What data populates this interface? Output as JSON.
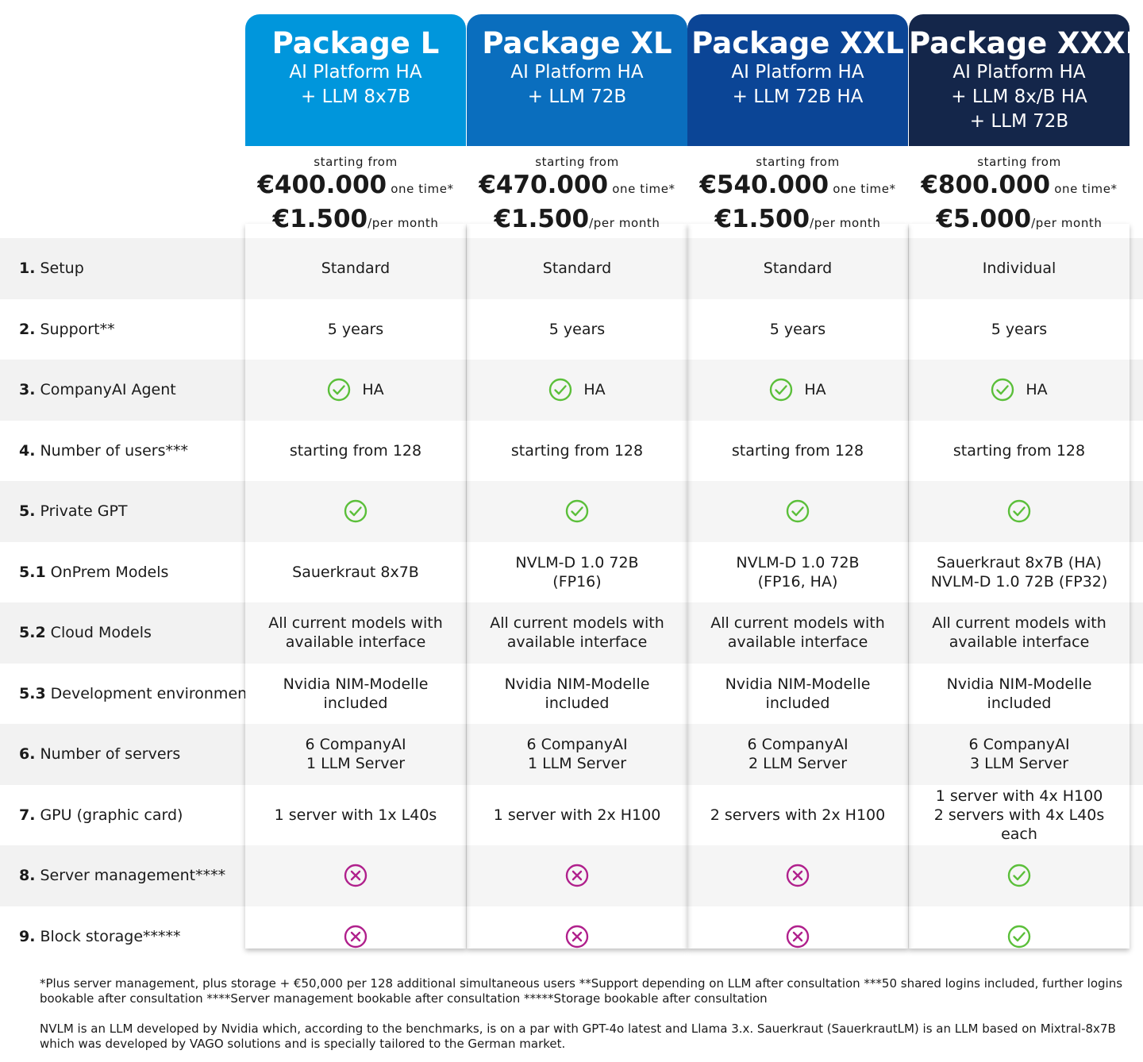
{
  "packages": [
    {
      "name": "Package L",
      "sub": [
        "AI Platform HA",
        "+ LLM 8x7B"
      ],
      "color": "#0096dc",
      "price": {
        "from": "starting from",
        "once": "€400.000",
        "once_suffix": "one time*",
        "monthly": "€1.500",
        "monthly_suffix": "/per month"
      }
    },
    {
      "name": "Package XL",
      "sub": [
        "AI Platform HA",
        "+ LLM 72B"
      ],
      "color": "#0a6ebe",
      "price": {
        "from": "starting from",
        "once": "€470.000",
        "once_suffix": "one time*",
        "monthly": "€1.500",
        "monthly_suffix": "/per month"
      }
    },
    {
      "name": "Package XXL",
      "sub": [
        "AI Platform HA",
        "+ LLM 72B HA"
      ],
      "color": "#0b4596",
      "price": {
        "from": "starting from",
        "once": "€540.000",
        "once_suffix": "one time*",
        "monthly": "€1.500",
        "monthly_suffix": "/per month"
      }
    },
    {
      "name": "Package XXXL",
      "sub": [
        "AI Platform HA",
        "+ LLM 8x/B HA",
        "+ LLM 72B"
      ],
      "color": "#14264a",
      "price": {
        "from": "starting from",
        "once": "€800.000",
        "once_suffix": "one time*",
        "monthly": "€5.000",
        "monthly_suffix": "/per month"
      }
    }
  ],
  "features": [
    {
      "num": "1.",
      "label": "Setup",
      "values": [
        [
          "Standard"
        ],
        [
          "Standard"
        ],
        [
          "Standard"
        ],
        [
          "Individual"
        ]
      ]
    },
    {
      "num": "2.",
      "label": "Support**",
      "values": [
        [
          "5 years"
        ],
        [
          "5 years"
        ],
        [
          "5 years"
        ],
        [
          "5 years"
        ]
      ]
    },
    {
      "num": "3.",
      "label": "CompanyAI Agent",
      "check_label": "HA"
    },
    {
      "num": "4.",
      "label": "Number of users***",
      "values": [
        [
          "starting from 128"
        ],
        [
          "starting from 128"
        ],
        [
          "starting from 128"
        ],
        [
          "starting from 128"
        ]
      ]
    },
    {
      "num": "5.",
      "label": "Private GPT"
    },
    {
      "num": "5.1",
      "label": "OnPrem Models",
      "values": [
        [
          "Sauerkraut 8x7B"
        ],
        [
          "NVLM-D 1.0 72B",
          "(FP16)"
        ],
        [
          "NVLM-D 1.0 72B",
          "(FP16, HA)"
        ],
        [
          "Sauerkraut 8x7B (HA)",
          "NVLM-D 1.0 72B (FP32)"
        ]
      ]
    },
    {
      "num": "5.2",
      "label": "Cloud Models",
      "values": [
        [
          "All current models with",
          "available interface"
        ],
        [
          "All current models with",
          "available interface"
        ],
        [
          "All current models with",
          "available interface"
        ],
        [
          "All current models with",
          "available interface"
        ]
      ]
    },
    {
      "num": "5.3",
      "label": "Development environment",
      "values": [
        [
          "Nvidia NIM-Modelle included"
        ],
        [
          "Nvidia NIM-Modelle included"
        ],
        [
          "Nvidia NIM-Modelle included"
        ],
        [
          "Nvidia NIM-Modelle included"
        ]
      ]
    },
    {
      "num": "6.",
      "label": "Number of servers",
      "values": [
        [
          "6 CompanyAI",
          "1 LLM Server"
        ],
        [
          "6 CompanyAI",
          "1 LLM Server"
        ],
        [
          "6 CompanyAI",
          "2 LLM Server"
        ],
        [
          "6 CompanyAI",
          "3 LLM Server"
        ]
      ]
    },
    {
      "num": "7.",
      "label": "GPU (graphic card)",
      "values": [
        [
          "1 server with 1x L40s"
        ],
        [
          "1 server with 2x H100"
        ],
        [
          "2 servers with 2x H100"
        ],
        [
          "1 server with 4x H100",
          "2 servers with 4x L40s each"
        ]
      ]
    },
    {
      "num": "8.",
      "label": "Server management****",
      "icons": [
        "cross-icon",
        "cross-icon",
        "cross-icon",
        "check-icon"
      ]
    },
    {
      "num": "9.",
      "label": "Block storage*****",
      "icons": [
        "cross-icon",
        "cross-icon",
        "cross-icon",
        "check-icon"
      ]
    }
  ],
  "colors": {
    "check": "#5bbf3a",
    "cross": "#b0208c",
    "row_shade": "#f2f2f2"
  },
  "notes": [
    "*Plus server management, plus storage + €50,000 per 128 additional simultaneous users **Support depending on LLM after consultation ***50 shared logins included, further logins bookable after consultation ****Server management bookable after consultation *****Storage bookable after consultation",
    "NVLM is an LLM developed by Nvidia which, according to the benchmarks, is on a par with GPT-4o latest and Llama 3.x. Sauerkraut (SauerkrautLM) is an LLM based on Mixtral-8x7B which was developed by VAGO solutions and is specially tailored to the German market."
  ]
}
